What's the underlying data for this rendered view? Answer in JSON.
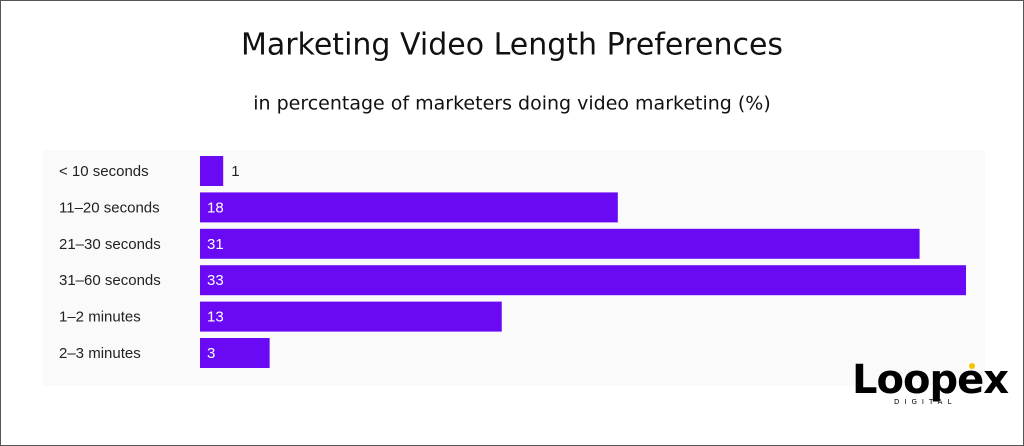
{
  "chart_data": {
    "type": "hbar",
    "title": "Marketing Video Length Preferences",
    "subtitle": "in percentage of marketers doing video marketing (%)",
    "categories": [
      "< 10 seconds",
      "11–20 seconds",
      "21–30 seconds",
      "31–60 seconds",
      "1–2 minutes",
      "2–3 minutes"
    ],
    "values": [
      1,
      18,
      31,
      33,
      13,
      3
    ],
    "color": "#6a0af5"
  },
  "logo": {
    "name": "Loopex",
    "tagline": "DIGITAL"
  }
}
